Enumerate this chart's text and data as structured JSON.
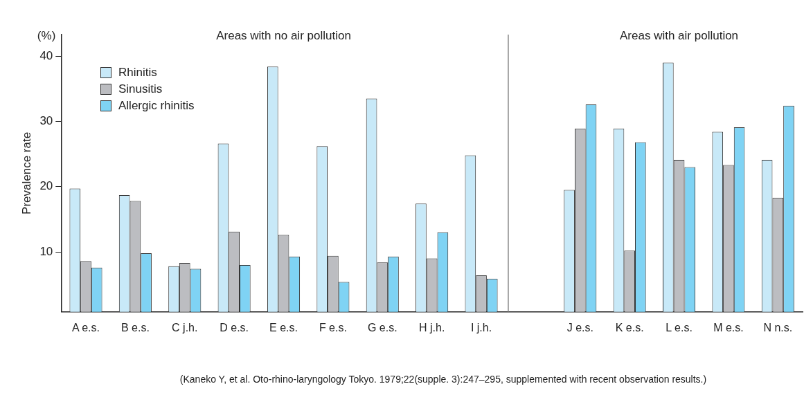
{
  "chart_data": {
    "type": "bar",
    "ylabel": "Prevalence rate",
    "categories": [
      "A e.s.",
      "B e.s.",
      "C j.h.",
      "D e.s.",
      "E e.s.",
      "F e.s.",
      "G e.s.",
      "H j.h.",
      "I j.h.",
      null,
      "J e.s.",
      "K e.s.",
      "L e.s.",
      "M e.s.",
      "N n.s."
    ],
    "series": [
      {
        "name": "Rhinitis",
        "color": "#c8e9f8",
        "values": [
          19.7,
          18.7,
          7.8,
          26.6,
          38.4,
          26.2,
          33.5,
          17.4,
          24.8,
          null,
          19.5,
          28.9,
          39.0,
          28.4,
          24.1
        ]
      },
      {
        "name": "Sinusitis",
        "color": "#bcbdc1",
        "values": [
          8.6,
          17.8,
          8.3,
          13.1,
          12.6,
          9.4,
          8.4,
          9.0,
          6.4,
          null,
          28.9,
          10.2,
          24.1,
          23.3,
          18.3
        ]
      },
      {
        "name": "Allergic rhinitis",
        "color": "#7fd3f4",
        "values": [
          7.6,
          9.8,
          7.4,
          8.0,
          9.3,
          5.4,
          9.3,
          13.0,
          5.9,
          null,
          32.6,
          26.8,
          23.0,
          29.1,
          32.4
        ]
      }
    ],
    "ylim": [
      0.8,
      43.3
    ],
    "yticks": [
      10,
      20,
      30,
      40
    ],
    "grid": false,
    "legend": "top left",
    "ref_lines": [
      {
        "axis": "x",
        "color": "#888888"
      }
    ],
    "annotations": [
      "(%)",
      "Areas with no air pollution",
      "Areas with air pollution",
      "(Kaneko Y, et al. Oto-rhino-laryngology Tokyo. 1979;22(supple. 3):247–295, supplemented with recent observation results.)"
    ]
  }
}
